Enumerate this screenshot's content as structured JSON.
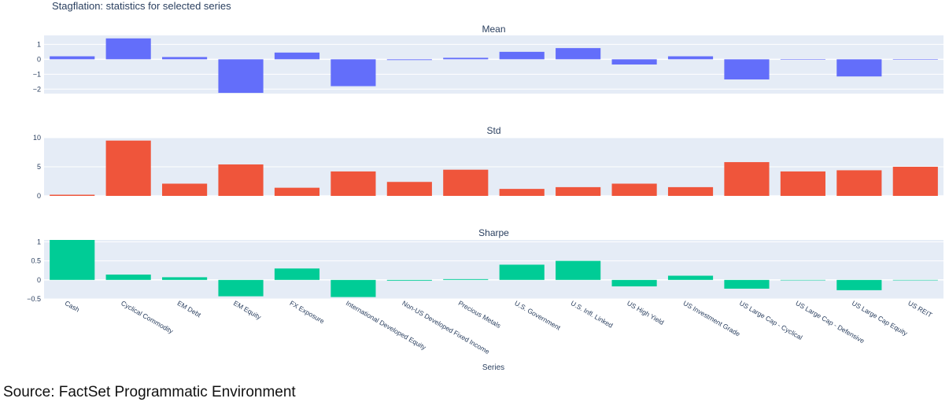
{
  "title": "Stagflation: statistics for selected series",
  "source": "Source: FactSet Programmatic Environment",
  "colors": {
    "mean": "#636efa",
    "std": "#ef553b",
    "sharpe": "#00cc96",
    "panel_bg": "#e5ecf6",
    "grid": "#ffffff",
    "text": "#2a3f5f"
  },
  "chart_data": {
    "type": "bar",
    "xlabel": "Series",
    "categories": [
      "Cash",
      "Cyclical Commodity",
      "EM Debt",
      "EM Equity",
      "FX Exposure",
      "International Developed Equity",
      "Non-US Developed Fixed Income",
      "Precious Metals",
      "U.S. Government",
      "U.S. Infl. Linked",
      "US High Yield",
      "US Investment Grade",
      "US Large Cap - Cyclical",
      "US Large Cap - Defensive",
      "US Large Cap Equity",
      "US REIT"
    ],
    "panels": [
      {
        "name": "Mean",
        "ylim": [
          -2.3,
          1.6
        ],
        "ticks": [
          1,
          0,
          -1,
          -2
        ],
        "tick_labels": [
          "1",
          "0",
          "−1",
          "−2"
        ],
        "values": [
          0.2,
          1.4,
          0.15,
          -2.25,
          0.45,
          -1.8,
          -0.05,
          0.1,
          0.5,
          0.75,
          -0.35,
          0.2,
          -1.35,
          0.0,
          -1.15,
          0.0
        ]
      },
      {
        "name": "Std",
        "ylim": [
          0,
          10
        ],
        "ticks": [
          10,
          5,
          0
        ],
        "tick_labels": [
          "10",
          "5",
          "0"
        ],
        "values": [
          0.2,
          9.5,
          2.1,
          5.4,
          1.4,
          4.2,
          2.4,
          4.5,
          1.2,
          1.5,
          2.1,
          1.5,
          5.8,
          4.2,
          4.4,
          5.0
        ]
      },
      {
        "name": "Sharpe",
        "ylim": [
          -0.5,
          1.05
        ],
        "ticks": [
          1,
          0.5,
          0,
          -0.5
        ],
        "tick_labels": [
          "1",
          "0.5",
          "0",
          "−0.5"
        ],
        "values": [
          1.05,
          0.14,
          0.07,
          -0.43,
          0.3,
          -0.45,
          -0.02,
          0.02,
          0.4,
          0.5,
          -0.17,
          0.11,
          -0.23,
          0.0,
          -0.27,
          0.0
        ]
      }
    ]
  }
}
